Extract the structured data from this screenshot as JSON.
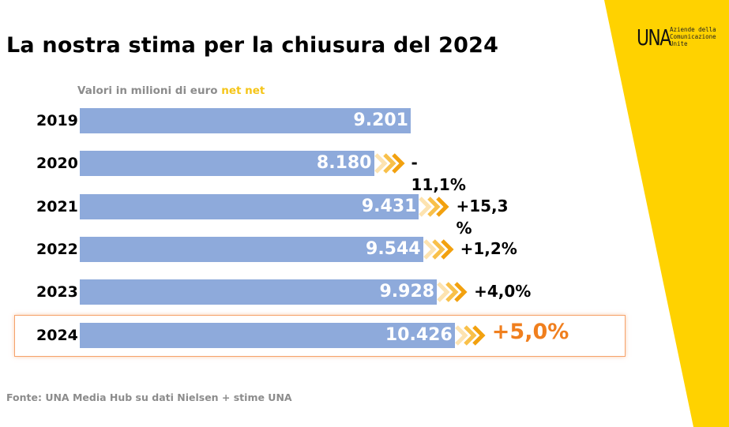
{
  "title": "La nostra stima per la chiusura del 2024",
  "subtitle": {
    "text": "Valori in milioni di euro",
    "highlight": "net net"
  },
  "logo": {
    "mark": "UNA",
    "tagline": "Aziende della\nComunicazione\nUnite",
    "icon": "una-logo-icon"
  },
  "source": "Fonte: UNA Media Hub su dati Nielsen + stime UNA",
  "colors": {
    "bar": "#8eaadb",
    "accent": "#f5c518",
    "highlight_text": "#f07f1e",
    "chevron": "#f5a623"
  },
  "chart_data": {
    "type": "bar",
    "orientation": "horizontal",
    "categories": [
      "2019",
      "2020",
      "2021",
      "2022",
      "2023",
      "2024"
    ],
    "values": [
      9201,
      8180,
      9431,
      9544,
      9928,
      10426
    ],
    "value_labels": [
      "9.201",
      "8.180",
      "9.431",
      "9.544",
      "9.928",
      "10.426"
    ],
    "change_labels": [
      "",
      "-\n11,1%",
      "+15,3\n%",
      "+1,2%",
      "+4,0%",
      "+5,0%"
    ],
    "highlighted_category": "2024",
    "title": "La nostra stima per la chiusura del 2024",
    "xlabel": "",
    "ylabel": "",
    "legend": "none",
    "grid": false
  }
}
